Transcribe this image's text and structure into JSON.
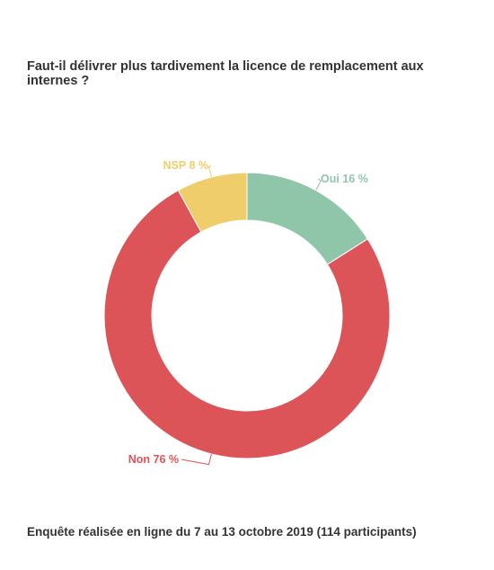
{
  "title": "Faut-il délivrer plus tardivement la licence de remplacement aux internes ?",
  "footer": "Enquête réalisée en ligne du 7 au 13 octobre 2019 (114 participants)",
  "chart_data": {
    "type": "pie",
    "title": "Faut-il délivrer plus tardivement la licence de remplacement aux internes ?",
    "donut": true,
    "slices": [
      {
        "name": "Oui",
        "value": 16,
        "label": "Oui 16 %",
        "color": "#8fc5a9"
      },
      {
        "name": "Non",
        "value": 76,
        "label": "Non 76 %",
        "color": "#dc5457"
      },
      {
        "name": "NSP",
        "value": 8,
        "label": "NSP 8 %",
        "color": "#f0cd6b"
      }
    ]
  }
}
